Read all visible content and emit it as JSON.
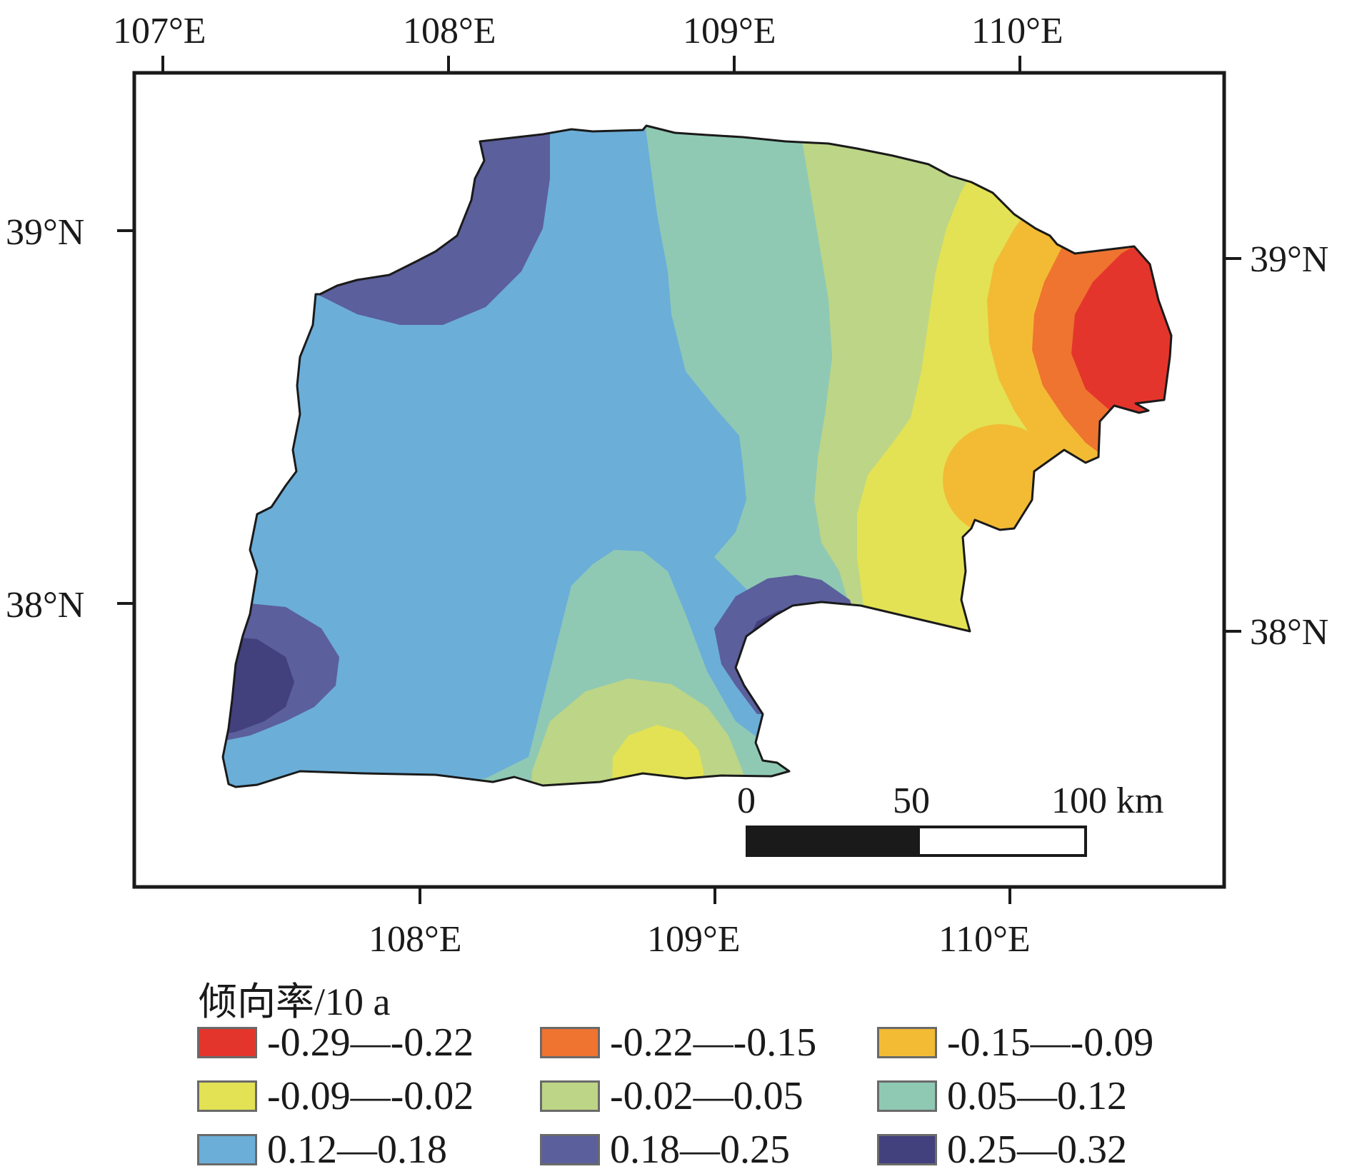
{
  "map": {
    "top_axis": [
      "107°E",
      "108°E",
      "109°E",
      "110°E"
    ],
    "bottom_axis": [
      "108°E",
      "109°E",
      "110°E"
    ],
    "left_axis": [
      "39°N",
      "38°N"
    ],
    "right_axis": [
      "39°N",
      "38°N"
    ],
    "scale_bar": {
      "labels": [
        "0",
        "50",
        "100 km"
      ]
    }
  },
  "legend": {
    "title": "倾向率/10 a",
    "items": [
      {
        "label": "-0.29—-0.22",
        "color": "#e4352c"
      },
      {
        "label": "-0.22—-0.15",
        "color": "#ee7430"
      },
      {
        "label": "-0.15—-0.09",
        "color": "#f3bb34"
      },
      {
        "label": "-0.09—-0.02",
        "color": "#e2e254"
      },
      {
        "label": "-0.02—0.05",
        "color": "#bdd586"
      },
      {
        "label": "0.05—0.12",
        "color": "#8fc9b4"
      },
      {
        "label": "0.12—0.18",
        "color": "#6baed8"
      },
      {
        "label": "0.18—0.25",
        "color": "#5b5f9c"
      },
      {
        "label": "0.25—0.32",
        "color": "#43407e"
      }
    ]
  }
}
